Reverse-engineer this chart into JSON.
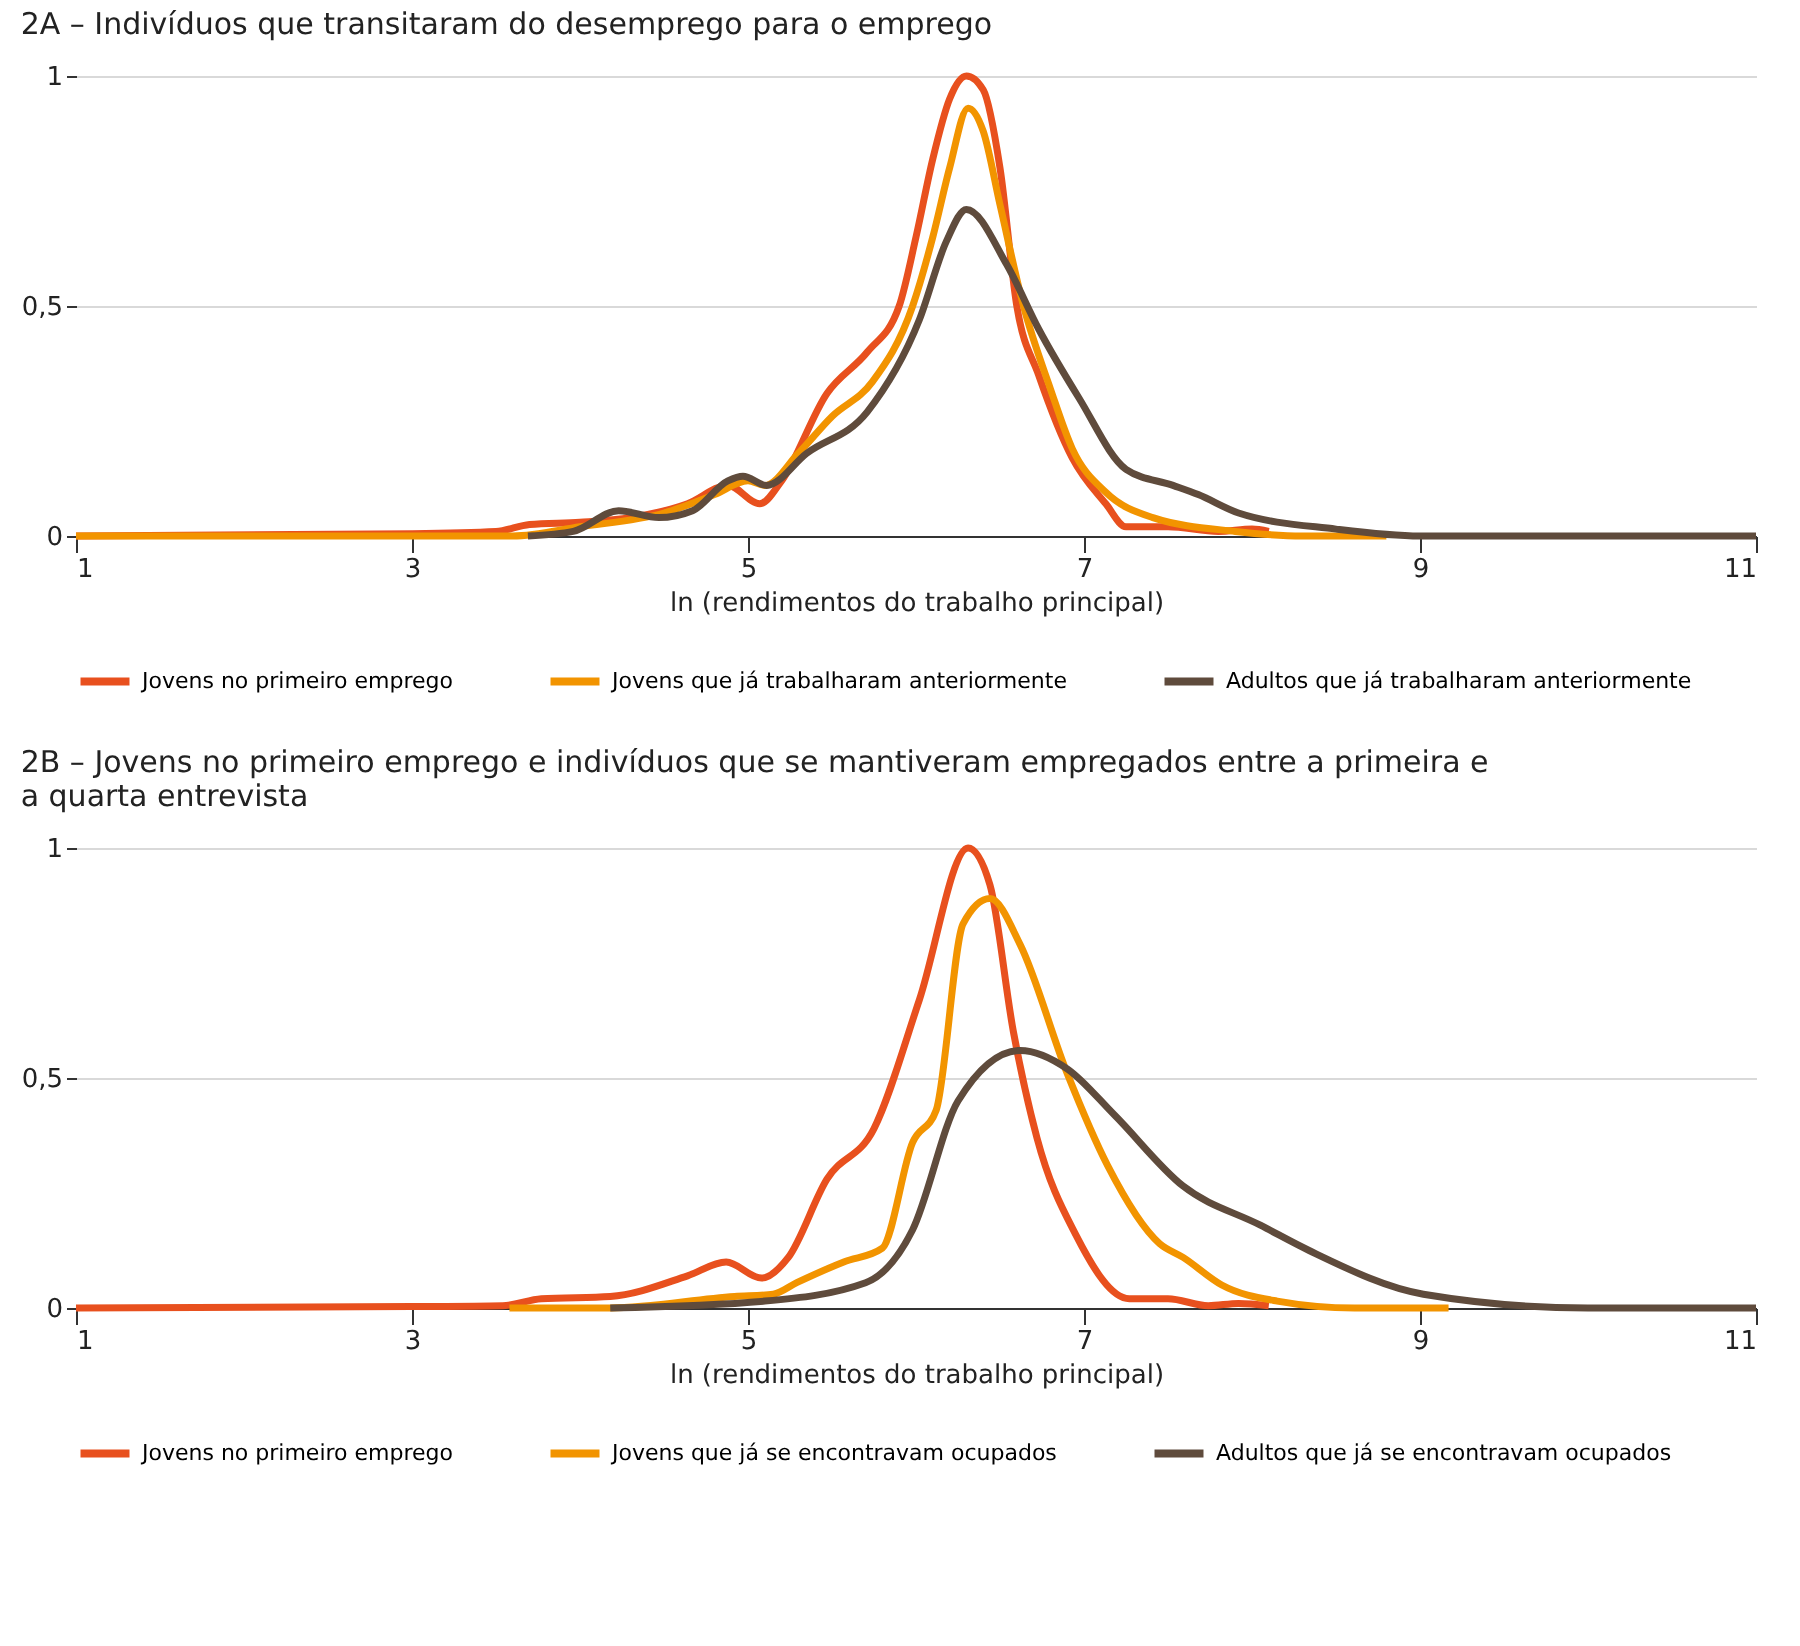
{
  "chart_data": [
    {
      "type": "line",
      "title": "2A – Indivíduos que transitaram do desemprego para o emprego",
      "xlabel": "ln (rendimentos do trabalho principal)",
      "xlim": [
        1,
        11
      ],
      "xticks": [
        1,
        3,
        5,
        7,
        9,
        11
      ],
      "ylim": [
        0,
        1
      ],
      "yticks": [
        0,
        {
          "value": 0.5,
          "label": "0,5"
        },
        1
      ],
      "grid": "y",
      "legend": "bottom",
      "marker": "none",
      "line_style": "solid",
      "series": [
        {
          "name": "Jovens no primeiro emprego",
          "color": "#e8501e",
          "x": [
            1,
            3,
            3.5,
            3.7,
            4.0,
            4.3,
            4.64,
            4.88,
            5.07,
            5.2,
            5.47,
            5.71,
            5.9,
            6.0,
            6.1,
            6.2,
            6.3,
            6.4,
            6.5,
            6.6,
            6.73,
            6.93,
            7.13,
            7.25,
            7.5,
            7.8,
            8.0,
            8.1
          ],
          "values": [
            0,
            0.005,
            0.01,
            0.025,
            0.03,
            0.04,
            0.07,
            0.11,
            0.07,
            0.12,
            0.31,
            0.4,
            0.5,
            0.65,
            0.82,
            0.95,
            1.0,
            0.97,
            0.8,
            0.5,
            0.35,
            0.17,
            0.07,
            0.02,
            0.02,
            0.01,
            0.015,
            0.01
          ]
        },
        {
          "name": "Jovens que já trabalharam anteriormente",
          "color": "#f29400",
          "x": [
            1,
            3.6,
            4.0,
            4.5,
            4.8,
            5.0,
            5.1,
            5.3,
            5.5,
            5.74,
            5.98,
            6.1,
            6.2,
            6.31,
            6.4,
            6.5,
            6.64,
            6.8,
            6.93,
            7.13,
            7.41,
            7.9,
            8.3,
            8.8
          ],
          "values": [
            0,
            0,
            0.02,
            0.05,
            0.09,
            0.12,
            0.11,
            0.18,
            0.26,
            0.335,
            0.5,
            0.65,
            0.8,
            0.93,
            0.88,
            0.72,
            0.5,
            0.32,
            0.19,
            0.095,
            0.04,
            0.01,
            0,
            0
          ]
        },
        {
          "name": "Adultos que já trabalharam anteriormente",
          "color": "#5f4b3c",
          "x": [
            3.69,
            3.96,
            4.23,
            4.47,
            4.67,
            4.88,
            4.97,
            5.11,
            5.35,
            5.71,
            6.02,
            6.18,
            6.3,
            6.54,
            6.73,
            6.97,
            7.25,
            7.53,
            7.68,
            7.92,
            8.5,
            9.0,
            10.0,
            11.0
          ],
          "values": [
            0,
            0.01,
            0.055,
            0.04,
            0.055,
            0.12,
            0.13,
            0.11,
            0.18,
            0.27,
            0.47,
            0.64,
            0.71,
            0.59,
            0.45,
            0.3,
            0.145,
            0.11,
            0.09,
            0.05,
            0.015,
            0,
            0,
            0
          ]
        }
      ]
    },
    {
      "type": "line",
      "title": "2B – Jovens no primeiro emprego e indivíduos que se mantiveram empregados entre a primeira e a quarta entrevista",
      "xlabel": "ln (rendimentos do trabalho principal)",
      "xlim": [
        1,
        11
      ],
      "xticks": [
        1,
        3,
        5,
        7,
        9,
        11
      ],
      "ylim": [
        0,
        1
      ],
      "yticks": [
        0,
        {
          "value": 0.5,
          "label": "0,5"
        },
        1
      ],
      "grid": "y",
      "legend": "bottom",
      "marker": "none",
      "line_style": "solid",
      "series": [
        {
          "name": "Jovens no primeiro emprego",
          "color": "#e8501e",
          "x": [
            1,
            3.0,
            3.54,
            3.77,
            4.18,
            4.64,
            4.87,
            5.08,
            5.24,
            5.47,
            5.75,
            6.02,
            6.31,
            6.44,
            6.58,
            6.72,
            6.95,
            7.27,
            7.5,
            7.74,
            7.92,
            8.1
          ],
          "values": [
            0,
            0.003,
            0.005,
            0.02,
            0.025,
            0.07,
            0.1,
            0.065,
            0.11,
            0.28,
            0.39,
            0.67,
            1.0,
            0.92,
            0.6,
            0.37,
            0.16,
            0.02,
            0.02,
            0.005,
            0.01,
            0.005
          ]
        },
        {
          "name": "Jovens que já se encontravam ocupados",
          "color": "#f29400",
          "x": [
            3.58,
            4.18,
            4.92,
            5.15,
            5.29,
            5.57,
            5.8,
            5.98,
            6.12,
            6.28,
            6.44,
            6.62,
            6.9,
            7.14,
            7.45,
            7.59,
            7.82,
            8.15,
            8.61,
            9.17
          ],
          "values": [
            0,
            0,
            0.025,
            0.03,
            0.055,
            0.1,
            0.13,
            0.36,
            0.43,
            0.835,
            0.89,
            0.79,
            0.51,
            0.31,
            0.14,
            0.11,
            0.05,
            0.015,
            0,
            0
          ]
        },
        {
          "name": "Adultos que já se encontravam ocupados",
          "color": "#5f4b3c",
          "x": [
            4.18,
            5.1,
            5.7,
            5.98,
            6.25,
            6.62,
            6.9,
            7.18,
            7.59,
            8.05,
            8.34,
            9.02,
            10.0,
            11.0
          ],
          "values": [
            0,
            0.015,
            0.055,
            0.17,
            0.45,
            0.56,
            0.52,
            0.42,
            0.265,
            0.18,
            0.125,
            0.03,
            0,
            0
          ]
        }
      ]
    }
  ]
}
